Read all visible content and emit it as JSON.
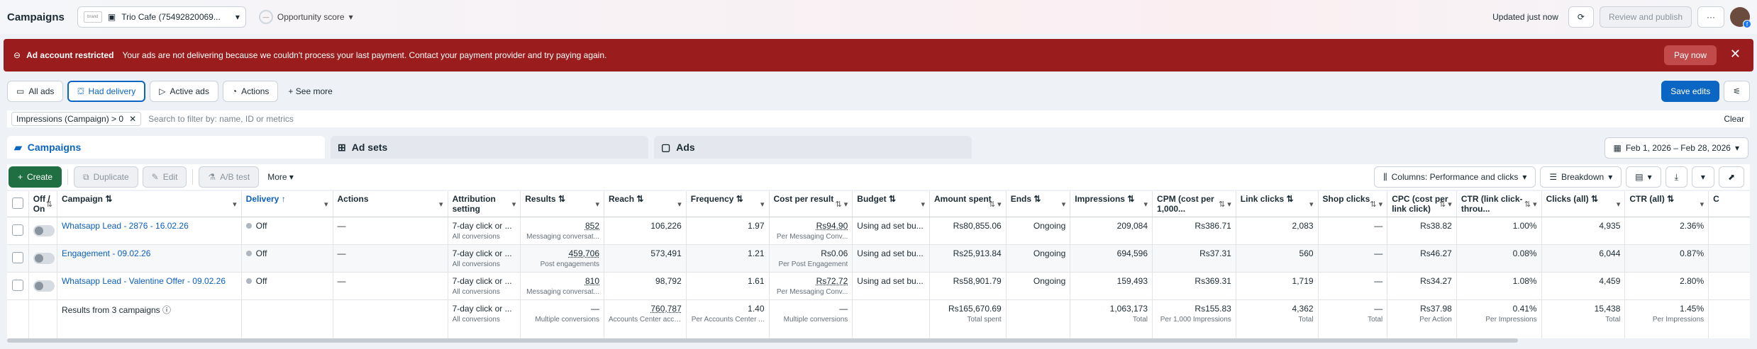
{
  "header": {
    "title": "Campaigns",
    "account_name": "Trio Cafe (75492820069...",
    "account_logo_text": "brand",
    "opportunity_label": "Opportunity score",
    "opportunity_value": "—",
    "updated": "Updated just now",
    "review_publish": "Review and publish"
  },
  "alert": {
    "title": "Ad account restricted",
    "message": "Your ads are not delivering because we couldn't process your last payment. Contact your payment provider and try paying again.",
    "pay_now": "Pay now"
  },
  "view_tabs": [
    "All ads",
    "Had delivery",
    "Active ads",
    "Actions"
  ],
  "see_more": "See more",
  "save_edits": "Save edits",
  "filter": {
    "chip": "Impressions (Campaign) > 0",
    "placeholder": "Search to filter by: name, ID or metrics",
    "clear": "Clear"
  },
  "levels": [
    "Campaigns",
    "Ad sets",
    "Ads"
  ],
  "date_range": "Feb 1, 2026 – Feb 28, 2026",
  "toolbar": {
    "create": "Create",
    "duplicate": "Duplicate",
    "edit": "Edit",
    "ab_test": "A/B test",
    "more": "More",
    "columns": "Columns: Performance and clicks",
    "breakdown": "Breakdown"
  },
  "table": {
    "headers": {
      "offon": "Off / On",
      "campaign": "Campaign",
      "delivery": "Delivery",
      "actions": "Actions",
      "attribution": "Attribution setting",
      "results": "Results",
      "reach": "Reach",
      "frequency": "Frequency",
      "cpr": "Cost per result",
      "budget": "Budget",
      "amount": "Amount spent",
      "ends": "Ends",
      "impressions": "Impressions",
      "cpm": "CPM (cost per 1,000...",
      "linkclicks": "Link clicks",
      "shopclicks": "Shop clicks",
      "cpc": "CPC (cost per link click)",
      "ctr_link": "CTR (link click-throu...",
      "clicks_all": "Clicks (all)",
      "ctr_all": "CTR (all)",
      "c": "C"
    },
    "rows": [
      {
        "campaign": "Whatsapp Lead - 2876 - 16.02.26",
        "delivery": "Off",
        "actions": "—",
        "attribution": "7-day click or ...",
        "attribution_sub": "All conversions",
        "results": "852",
        "results_sub": "Messaging conversat...",
        "reach": "106,226",
        "frequency": "1.97",
        "cpr": "Rs94.90",
        "cpr_sub": "Per Messaging Conv...",
        "budget": "Using ad set bu...",
        "amount": "Rs80,855.06",
        "ends": "Ongoing",
        "impressions": "209,084",
        "cpm": "Rs386.71",
        "linkclicks": "2,083",
        "shopclicks": "—",
        "cpc": "Rs38.82",
        "ctr_link": "1.00%",
        "clicks_all": "4,935",
        "ctr_all": "2.36%"
      },
      {
        "campaign": "Engagement - 09.02.26",
        "delivery": "Off",
        "actions": "—",
        "attribution": "7-day click or ...",
        "attribution_sub": "All conversions",
        "results": "459,706",
        "results_sub": "Post engagements",
        "reach": "573,491",
        "frequency": "1.21",
        "cpr": "Rs0.06",
        "cpr_sub": "Per Post Engagement",
        "budget": "Using ad set bu...",
        "amount": "Rs25,913.84",
        "ends": "Ongoing",
        "impressions": "694,596",
        "cpm": "Rs37.31",
        "linkclicks": "560",
        "shopclicks": "—",
        "cpc": "Rs46.27",
        "ctr_link": "0.08%",
        "clicks_all": "6,044",
        "ctr_all": "0.87%"
      },
      {
        "campaign": "Whatsapp Lead - Valentine Offer - 09.02.26",
        "delivery": "Off",
        "actions": "—",
        "attribution": "7-day click or ...",
        "attribution_sub": "All conversions",
        "results": "810",
        "results_sub": "Messaging conversat...",
        "reach": "98,792",
        "frequency": "1.61",
        "cpr": "Rs72.72",
        "cpr_sub": "Per Messaging Conv...",
        "budget": "Using ad set bu...",
        "amount": "Rs58,901.79",
        "ends": "Ongoing",
        "impressions": "159,493",
        "cpm": "Rs369.31",
        "linkclicks": "1,719",
        "shopclicks": "—",
        "cpc": "Rs34.27",
        "ctr_link": "1.08%",
        "clicks_all": "4,459",
        "ctr_all": "2.80%"
      }
    ],
    "totals": {
      "label": "Results from 3 campaigns",
      "attribution": "7-day click or ...",
      "attribution_sub": "All conversions",
      "results": "—",
      "results_sub": "Multiple conversions",
      "reach": "760,787",
      "reach_sub": "Accounts Center acco...",
      "frequency": "1.40",
      "frequency_sub": "Per Accounts Center ...",
      "cpr": "—",
      "cpr_sub": "Multiple conversions",
      "amount": "Rs165,670.69",
      "amount_sub": "Total spent",
      "impressions": "1,063,173",
      "impressions_sub": "Total",
      "cpm": "Rs155.83",
      "cpm_sub": "Per 1,000 Impressions",
      "linkclicks": "4,362",
      "linkclicks_sub": "Total",
      "shopclicks": "—",
      "shopclicks_sub": "Total",
      "cpc": "Rs37.98",
      "cpc_sub": "Per Action",
      "ctr_link": "0.41%",
      "ctr_link_sub": "Per Impressions",
      "clicks_all": "15,438",
      "clicks_all_sub": "Total",
      "ctr_all": "1.45%",
      "ctr_all_sub": "Per Impressions"
    }
  }
}
